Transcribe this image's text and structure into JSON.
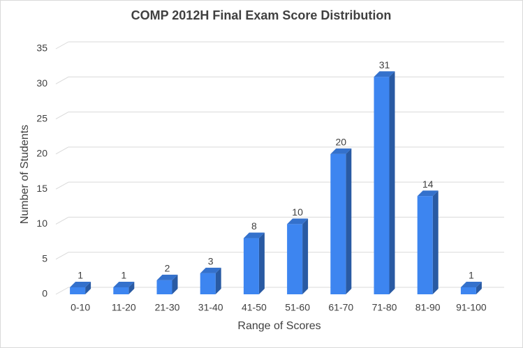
{
  "chart_data": {
    "type": "bar3d",
    "title": "COMP 2012H Final Exam Score Distribution",
    "x_label": "Range of Scores",
    "y_label": "Number of Students",
    "categories": [
      "0-10",
      "11-20",
      "21-30",
      "31-40",
      "41-50",
      "51-60",
      "61-70",
      "71-80",
      "81-90",
      "91-100"
    ],
    "values": [
      1,
      1,
      2,
      3,
      8,
      10,
      20,
      31,
      14,
      1
    ],
    "color": "#3d85f0",
    "ylim": [
      0,
      35
    ],
    "yticks": [
      0,
      5,
      10,
      15,
      20,
      25,
      30,
      35
    ],
    "grid": true
  }
}
